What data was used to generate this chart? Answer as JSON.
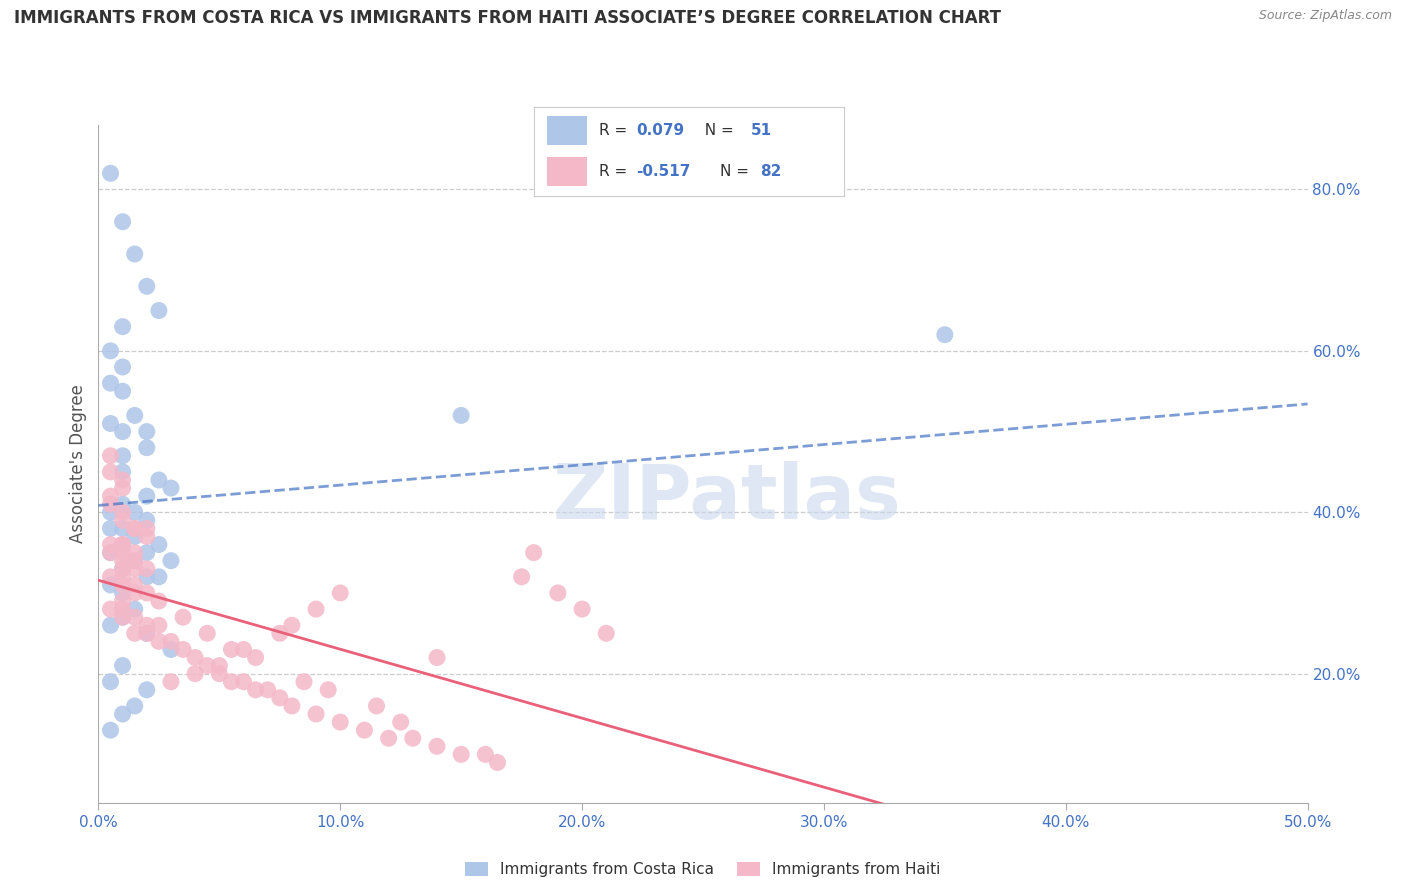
{
  "title": "IMMIGRANTS FROM COSTA RICA VS IMMIGRANTS FROM HAITI ASSOCIATE’S DEGREE CORRELATION CHART",
  "source": "Source: ZipAtlas.com",
  "ylabel": "Associate's Degree",
  "legend_label1": "Immigrants from Costa Rica",
  "legend_label2": "Immigrants from Haiti",
  "R1": 0.079,
  "N1": 51,
  "R2": -0.517,
  "N2": 82,
  "xlim": [
    0.0,
    0.5
  ],
  "ylim": [
    0.04,
    0.88
  ],
  "xtick_vals": [
    0.0,
    0.1,
    0.2,
    0.3,
    0.4,
    0.5
  ],
  "xtick_labels": [
    "0.0%",
    "10.0%",
    "20.0%",
    "30.0%",
    "40.0%",
    "50.0%"
  ],
  "ytick_vals": [
    0.2,
    0.4,
    0.6,
    0.8
  ],
  "ytick_labels": [
    "20.0%",
    "40.0%",
    "60.0%",
    "80.0%"
  ],
  "color1": "#aec6e8",
  "color2": "#f4b8c8",
  "line_color1": "#4472c4",
  "line_color2": "#e8607a",
  "watermark": "ZIPatlas",
  "costa_rica_x": [
    0.005,
    0.01,
    0.015,
    0.02,
    0.025,
    0.01,
    0.005,
    0.01,
    0.005,
    0.01,
    0.015,
    0.005,
    0.01,
    0.02,
    0.01,
    0.02,
    0.01,
    0.025,
    0.03,
    0.02,
    0.01,
    0.005,
    0.015,
    0.02,
    0.01,
    0.005,
    0.015,
    0.025,
    0.01,
    0.005,
    0.02,
    0.03,
    0.015,
    0.01,
    0.025,
    0.02,
    0.005,
    0.01,
    0.015,
    0.01,
    0.005,
    0.02,
    0.03,
    0.01,
    0.005,
    0.02,
    0.015,
    0.01,
    0.005,
    0.15,
    0.35
  ],
  "costa_rica_y": [
    0.82,
    0.76,
    0.72,
    0.68,
    0.65,
    0.63,
    0.6,
    0.58,
    0.56,
    0.55,
    0.52,
    0.51,
    0.5,
    0.48,
    0.47,
    0.5,
    0.45,
    0.44,
    0.43,
    0.42,
    0.41,
    0.4,
    0.4,
    0.39,
    0.38,
    0.38,
    0.37,
    0.36,
    0.36,
    0.35,
    0.35,
    0.34,
    0.34,
    0.33,
    0.32,
    0.32,
    0.31,
    0.3,
    0.28,
    0.27,
    0.26,
    0.25,
    0.23,
    0.21,
    0.19,
    0.18,
    0.16,
    0.15,
    0.13,
    0.52,
    0.62
  ],
  "haiti_x": [
    0.005,
    0.005,
    0.01,
    0.01,
    0.005,
    0.005,
    0.01,
    0.01,
    0.015,
    0.015,
    0.02,
    0.005,
    0.01,
    0.005,
    0.01,
    0.01,
    0.015,
    0.01,
    0.015,
    0.02,
    0.005,
    0.01,
    0.015,
    0.01,
    0.015,
    0.02,
    0.01,
    0.005,
    0.01,
    0.015,
    0.01,
    0.02,
    0.025,
    0.015,
    0.02,
    0.03,
    0.025,
    0.035,
    0.04,
    0.045,
    0.05,
    0.06,
    0.055,
    0.065,
    0.07,
    0.075,
    0.08,
    0.09,
    0.1,
    0.11,
    0.12,
    0.13,
    0.14,
    0.15,
    0.16,
    0.165,
    0.175,
    0.18,
    0.19,
    0.2,
    0.14,
    0.21,
    0.1,
    0.08,
    0.09,
    0.075,
    0.06,
    0.05,
    0.04,
    0.03,
    0.02,
    0.015,
    0.01,
    0.025,
    0.035,
    0.045,
    0.055,
    0.065,
    0.085,
    0.095,
    0.115,
    0.125
  ],
  "haiti_y": [
    0.47,
    0.45,
    0.44,
    0.43,
    0.42,
    0.41,
    0.4,
    0.39,
    0.38,
    0.38,
    0.37,
    0.36,
    0.36,
    0.35,
    0.35,
    0.34,
    0.34,
    0.33,
    0.33,
    0.33,
    0.32,
    0.32,
    0.31,
    0.31,
    0.3,
    0.3,
    0.29,
    0.28,
    0.28,
    0.27,
    0.27,
    0.26,
    0.26,
    0.25,
    0.25,
    0.24,
    0.24,
    0.23,
    0.22,
    0.21,
    0.2,
    0.19,
    0.19,
    0.18,
    0.18,
    0.17,
    0.16,
    0.15,
    0.14,
    0.13,
    0.12,
    0.12,
    0.11,
    0.1,
    0.1,
    0.09,
    0.32,
    0.35,
    0.3,
    0.28,
    0.22,
    0.25,
    0.3,
    0.26,
    0.28,
    0.25,
    0.23,
    0.21,
    0.2,
    0.19,
    0.38,
    0.35,
    0.36,
    0.29,
    0.27,
    0.25,
    0.23,
    0.22,
    0.19,
    0.18,
    0.16,
    0.14
  ]
}
